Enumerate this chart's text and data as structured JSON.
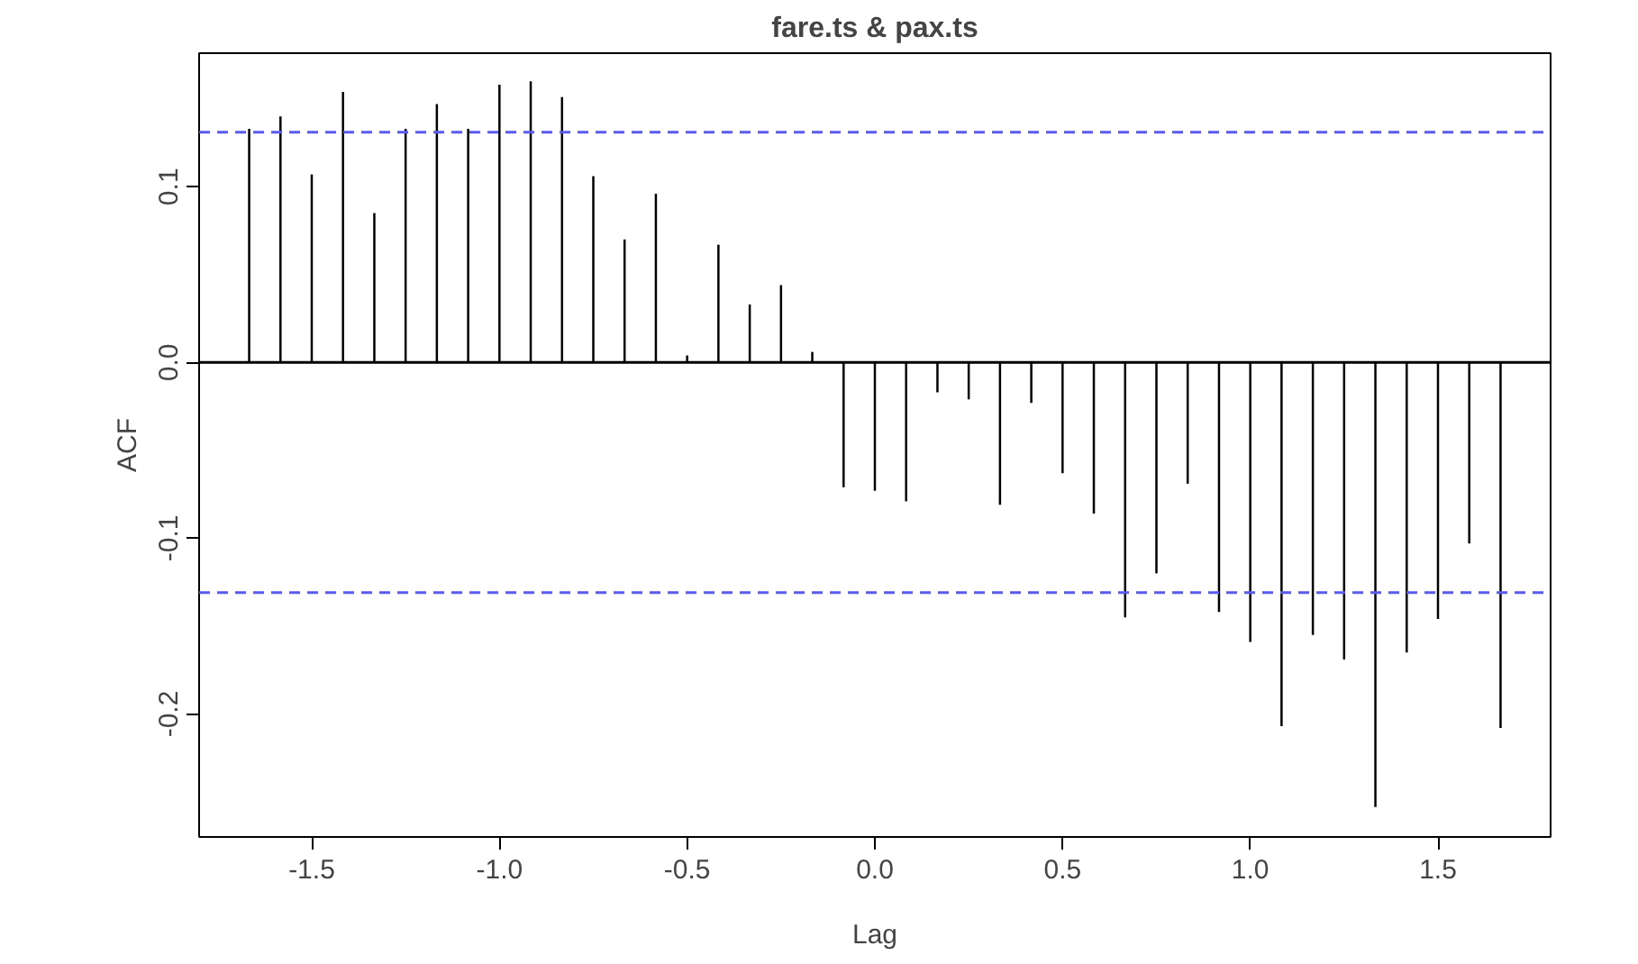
{
  "chart_data": {
    "type": "bar",
    "title": "fare.ts & pax.ts",
    "xlabel": "Lag",
    "ylabel": "ACF",
    "x": [
      -1.6667,
      -1.5833,
      -1.5,
      -1.4167,
      -1.3333,
      -1.25,
      -1.1667,
      -1.0833,
      -1.0,
      -0.9167,
      -0.8333,
      -0.75,
      -0.6667,
      -0.5833,
      -0.5,
      -0.4167,
      -0.3333,
      -0.25,
      -0.1667,
      -0.0833,
      0.0,
      0.0833,
      0.1667,
      0.25,
      0.3333,
      0.4167,
      0.5,
      0.5833,
      0.6667,
      0.75,
      0.8333,
      0.9167,
      1.0,
      1.0833,
      1.1667,
      1.25,
      1.3333,
      1.4167,
      1.5,
      1.5833,
      1.6667
    ],
    "series": [
      {
        "color": "#000000",
        "values": [
          0.133,
          0.14,
          0.107,
          0.154,
          0.085,
          0.133,
          0.147,
          0.133,
          0.158,
          0.16,
          0.151,
          0.106,
          0.07,
          0.096,
          0.004,
          0.067,
          0.033,
          0.044,
          0.006,
          -0.071,
          -0.073,
          -0.079,
          -0.017,
          -0.021,
          -0.081,
          -0.023,
          -0.063,
          -0.086,
          -0.145,
          -0.12,
          -0.069,
          -0.142,
          -0.159,
          -0.207,
          -0.155,
          -0.169,
          -0.253,
          -0.165,
          -0.146,
          -0.103,
          -0.208
        ]
      }
    ],
    "xlim": [
      -1.8,
      1.8
    ],
    "ylim": [
      -0.27,
      0.176
    ],
    "xticks": [
      {
        "value": -1.5,
        "label": "-1.5"
      },
      {
        "value": -1.0,
        "label": "-1.0"
      },
      {
        "value": -0.5,
        "label": "-0.5"
      },
      {
        "value": 0.0,
        "label": "0.0"
      },
      {
        "value": 0.5,
        "label": "0.5"
      },
      {
        "value": 1.0,
        "label": "1.0"
      },
      {
        "value": 1.5,
        "label": "1.5"
      }
    ],
    "yticks": [
      {
        "value": -0.2,
        "label": "-0.2"
      },
      {
        "value": -0.1,
        "label": "-0.1"
      },
      {
        "value": 0.0,
        "label": "0.0"
      },
      {
        "value": 0.1,
        "label": "0.1"
      }
    ],
    "ref_lines": [
      {
        "axis": "y",
        "value": 0.131,
        "color": "#5a5aee",
        "line_style": "dashed"
      },
      {
        "axis": "y",
        "value": -0.131,
        "color": "#5a5aee",
        "line_style": "dashed"
      },
      {
        "axis": "y",
        "value": 0,
        "color": "#000000",
        "line_style": "solid"
      }
    ],
    "grid": false
  }
}
